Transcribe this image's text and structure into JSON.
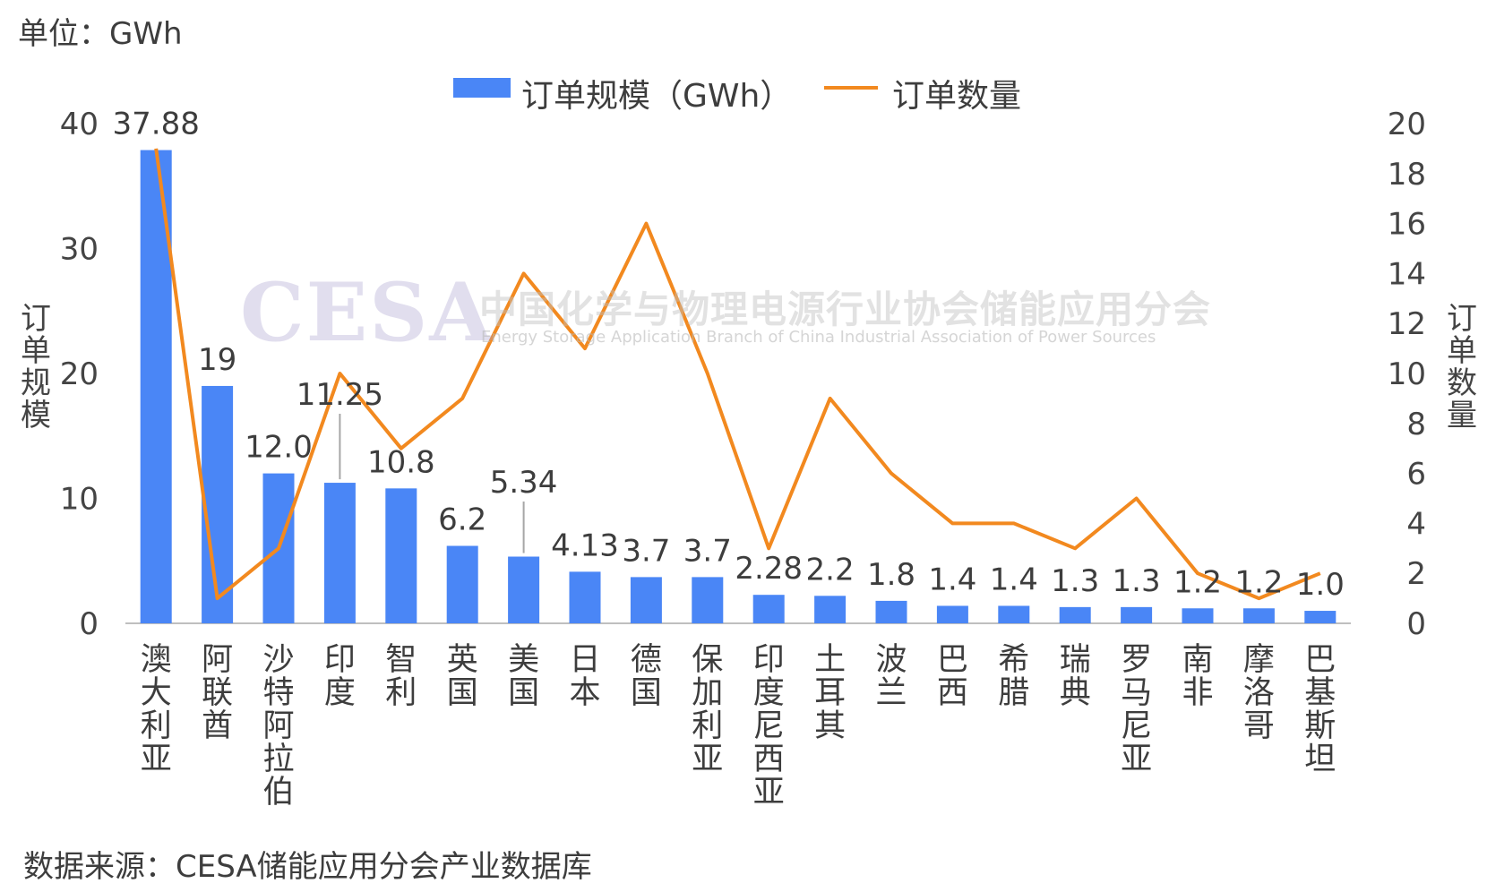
{
  "unit_label": "单位：GWh",
  "source_label": "数据来源：CESA储能应用分会产业数据库",
  "watermark": {
    "logo": "CESA",
    "cn": "中国化学与物理电源行业协会储能应用分会",
    "en": "Energy Storage Application Branch of China Industrial Association of Power Sources"
  },
  "chart_data": {
    "type": "bar",
    "title": "",
    "xlabel": "",
    "ylabel": "订单规模",
    "y2label": "订单数量",
    "ylim": [
      0,
      40
    ],
    "y2lim": [
      0,
      20
    ],
    "yticks": [
      "0",
      "10",
      "20",
      "30",
      "40"
    ],
    "y2ticks": [
      "0",
      "2",
      "4",
      "6",
      "8",
      "10",
      "12",
      "14",
      "16",
      "18",
      "20"
    ],
    "legend_position": "top-center",
    "grid": false,
    "categories": [
      "澳大利亚",
      "阿联酋",
      "沙特阿拉伯",
      "印度",
      "智利",
      "英国",
      "美国",
      "日本",
      "德国",
      "保加利亚",
      "印度尼西亚",
      "土耳其",
      "波兰",
      "巴西",
      "希腊",
      "瑞典",
      "罗马尼亚",
      "南非",
      "摩洛哥",
      "巴基斯坦"
    ],
    "series": [
      {
        "name": "订单规模（GWh）",
        "kind": "bar",
        "axis": "left",
        "color": "#4a86f6",
        "values": [
          37.88,
          19,
          12.0,
          11.25,
          10.8,
          6.2,
          5.34,
          4.13,
          3.7,
          3.7,
          2.28,
          2.2,
          1.8,
          1.4,
          1.4,
          1.3,
          1.3,
          1.2,
          1.2,
          1.0
        ],
        "labels": [
          "37.88",
          "19",
          "12.0",
          "11.25",
          "10.8",
          "6.2",
          "5.34",
          "4.13",
          "3.7",
          "3.7",
          "2.28",
          "2.2",
          "1.8",
          "1.4",
          "1.4",
          "1.3",
          "1.3",
          "1.2",
          "1.2",
          "1.0"
        ]
      },
      {
        "name": "订单数量",
        "kind": "line",
        "axis": "right",
        "color": "#f2891f",
        "values": [
          19,
          1,
          3,
          10,
          7,
          9,
          14,
          11,
          16,
          10,
          3,
          9,
          6,
          4,
          4,
          3,
          5,
          2,
          1,
          2
        ]
      }
    ]
  }
}
